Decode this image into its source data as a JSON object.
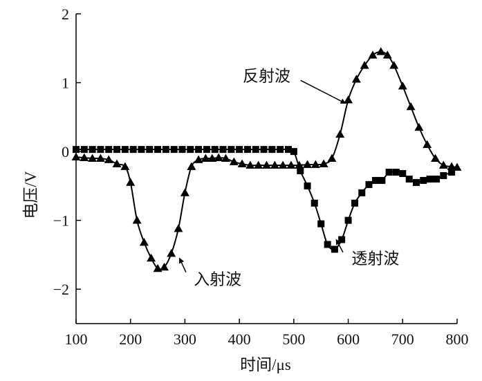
{
  "chart_data": {
    "type": "line",
    "title": "",
    "xlabel": "时间/μs",
    "ylabel": "电压/V",
    "xlim": [
      100,
      800
    ],
    "ylim": [
      -2.5,
      2
    ],
    "x_ticks": [
      "100",
      "200",
      "300",
      "400",
      "500",
      "600",
      "700",
      "800"
    ],
    "y_ticks": [
      "2",
      "1",
      "0",
      "−1",
      "−2"
    ],
    "grid": false,
    "legend": "none",
    "colors": {
      "series": "#000000",
      "axis": "#000000"
    },
    "series": [
      {
        "marker": "triangle",
        "x": [
          100,
          115,
          130,
          145,
          160,
          175,
          190,
          200,
          212,
          225,
          238,
          250,
          262,
          275,
          288,
          300,
          312,
          325,
          338,
          350,
          362,
          375,
          390,
          405,
          420,
          435,
          450,
          465,
          480,
          495,
          510,
          525,
          540,
          555,
          570,
          585,
          600,
          615,
          630,
          645,
          660,
          672,
          684,
          700,
          715,
          730,
          745,
          760,
          775,
          790,
          800
        ],
        "y": [
          -0.08,
          -0.09,
          -0.1,
          -0.1,
          -0.12,
          -0.18,
          -0.22,
          -0.45,
          -1.0,
          -1.32,
          -1.55,
          -1.7,
          -1.68,
          -1.48,
          -1.12,
          -0.6,
          -0.22,
          -0.12,
          -0.1,
          -0.1,
          -0.09,
          -0.1,
          -0.15,
          -0.18,
          -0.2,
          -0.2,
          -0.2,
          -0.2,
          -0.2,
          -0.2,
          -0.2,
          -0.19,
          -0.19,
          -0.18,
          -0.1,
          0.25,
          0.75,
          1.05,
          1.25,
          1.4,
          1.45,
          1.4,
          1.25,
          0.95,
          0.65,
          0.35,
          0.1,
          -0.1,
          -0.2,
          -0.22,
          -0.23
        ]
      },
      {
        "marker": "square",
        "x": [
          100,
          115,
          130,
          145,
          160,
          175,
          190,
          205,
          220,
          235,
          250,
          265,
          280,
          295,
          310,
          325,
          340,
          355,
          370,
          385,
          400,
          415,
          430,
          445,
          460,
          475,
          490,
          500,
          512,
          525,
          538,
          550,
          562,
          575,
          588,
          600,
          612,
          625,
          638,
          650,
          662,
          675,
          688,
          700,
          712,
          725,
          738,
          750,
          762,
          775,
          790
        ],
        "y": [
          0.03,
          0.03,
          0.03,
          0.03,
          0.03,
          0.03,
          0.03,
          0.03,
          0.03,
          0.03,
          0.03,
          0.03,
          0.03,
          0.03,
          0.03,
          0.03,
          0.03,
          0.03,
          0.03,
          0.03,
          0.03,
          0.03,
          0.03,
          0.03,
          0.03,
          0.03,
          0.03,
          0.0,
          -0.28,
          -0.5,
          -0.75,
          -1.05,
          -1.35,
          -1.42,
          -1.28,
          -1.0,
          -0.75,
          -0.6,
          -0.48,
          -0.42,
          -0.42,
          -0.3,
          -0.3,
          -0.32,
          -0.4,
          -0.45,
          -0.42,
          -0.4,
          -0.4,
          -0.35,
          -0.3
        ]
      }
    ],
    "annotations": [
      {
        "text": "反射波",
        "x": 450,
        "y": 1.1,
        "points_to": {
          "x": 595,
          "y": 0.7
        }
      },
      {
        "text": "入射波",
        "x": 360,
        "y": -1.85,
        "points_to": {
          "x": 290,
          "y": -1.55
        }
      },
      {
        "text": "透射波",
        "x": 650,
        "y": -1.55,
        "points_to": {
          "x": 578,
          "y": -1.28
        }
      }
    ]
  }
}
